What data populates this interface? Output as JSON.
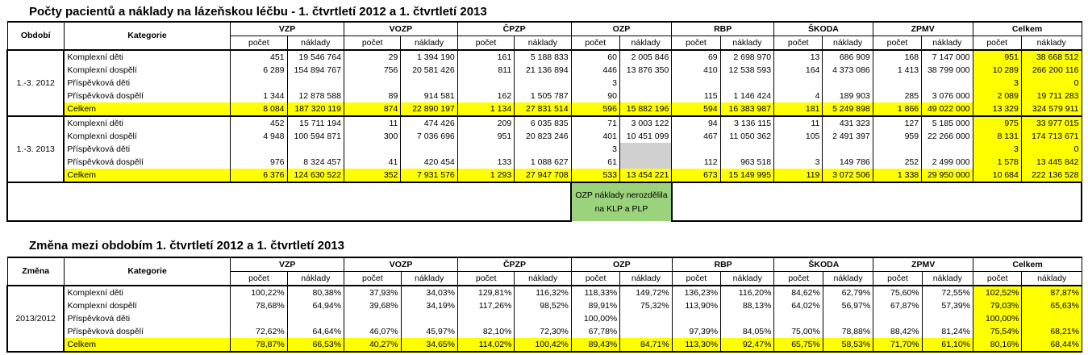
{
  "table1": {
    "title": "Počty pacientů a náklady na lázeňskou léčbu - 1. čtvrtletí 2012 a 1. čtvrtletí 2013",
    "col_period": "Období",
    "col_category": "Kategorie",
    "insurers": [
      "VZP",
      "VOZP",
      "ČPZP",
      "OZP",
      "RBP",
      "ŠKODA",
      "ZPMV",
      "Celkem"
    ],
    "sub_count": "počet",
    "sub_cost": "náklady",
    "groups": [
      {
        "period": "1.-3. 2012",
        "rows": [
          {
            "label": "Komplexní děti",
            "values": [
              "451",
              "19 546 764",
              "29",
              "1 394 190",
              "161",
              "5 188 833",
              "60",
              "2 005 846",
              "69",
              "2 698 970",
              "13",
              "686 909",
              "168",
              "7 147 000",
              "951",
              "38 668 512"
            ]
          },
          {
            "label": "Komplexní dospělí",
            "values": [
              "6 289",
              "154 894 767",
              "756",
              "20 581 426",
              "811",
              "21 136 894",
              "446",
              "13 876 350",
              "410",
              "12 538 593",
              "164",
              "4 373 086",
              "1 413",
              "38 799 000",
              "10 289",
              "266 200 116"
            ]
          },
          {
            "label": "Příspěvková děti",
            "values": [
              "",
              "",
              "",
              "",
              "",
              "",
              "3",
              "",
              "",
              "",
              "",
              "",
              "",
              "",
              "3",
              "0"
            ]
          },
          {
            "label": "Příspěvková dospělí",
            "values": [
              "1 344",
              "12 878 588",
              "89",
              "914 581",
              "162",
              "1 505 787",
              "90",
              "",
              "115",
              "1 146 424",
              "4",
              "189 903",
              "285",
              "3 076 000",
              "2 089",
              "19 711 283"
            ]
          },
          {
            "label": "Celkem",
            "values": [
              "8 084",
              "187 320 119",
              "874",
              "22 890 197",
              "1 134",
              "27 831 514",
              "596",
              "15 882 196",
              "594",
              "16 383 987",
              "181",
              "5 249 898",
              "1 866",
              "49 022 000",
              "13 329",
              "324 579 911"
            ]
          }
        ]
      },
      {
        "period": "1.-3. 2013",
        "rows": [
          {
            "label": "Komplexní děti",
            "values": [
              "452",
              "15 711 194",
              "11",
              "474 426",
              "209",
              "6 035 835",
              "71",
              "3 003 122",
              "94",
              "3 136 115",
              "11",
              "431 323",
              "127",
              "5 185 000",
              "975",
              "33 977 015"
            ]
          },
          {
            "label": "Komplexní dospělí",
            "values": [
              "4 948",
              "100 594 871",
              "300",
              "7 036 696",
              "951",
              "20 823 246",
              "401",
              "10 451 099",
              "467",
              "11 050 362",
              "105",
              "2 491 397",
              "959",
              "22 266 000",
              "8 131",
              "174 713 671"
            ]
          },
          {
            "label": "Příspěvková děti",
            "values": [
              "",
              "",
              "",
              "",
              "",
              "",
              "3",
              "",
              "",
              "",
              "",
              "",
              "",
              "",
              "3",
              "0"
            ]
          },
          {
            "label": "Příspěvková dospělí",
            "values": [
              "976",
              "8 324 457",
              "41",
              "420 454",
              "133",
              "1 088 627",
              "61",
              "",
              "112",
              "963 518",
              "3",
              "149 786",
              "252",
              "2 499 000",
              "1 578",
              "13 445 842"
            ]
          },
          {
            "label": "Celkem",
            "values": [
              "6 376",
              "124 630 522",
              "352",
              "7 931 576",
              "1 293",
              "27 947 708",
              "533",
              "13 454 221",
              "673",
              "15 149 995",
              "119",
              "3 072 506",
              "1 338",
              "29 950 000",
              "10 684",
              "222 136 528"
            ]
          }
        ]
      }
    ],
    "note": "OZP náklady nerozdělila na KLP a PLP"
  },
  "table2": {
    "title": "Změna mezi obdobím 1. čtvrtletí 2012 a 1. čtvrtletí 2013",
    "col_period": "Změna",
    "col_category": "Kategorie",
    "insurers": [
      "VZP",
      "VOZP",
      "ČPZP",
      "OZP",
      "RBP",
      "ŠKODA",
      "ZPMV",
      "Celkem"
    ],
    "sub_count": "počet",
    "sub_cost": "náklady",
    "period": "2013/2012",
    "rows": [
      {
        "label": "Komplexní děti",
        "values": [
          "100,22%",
          "80,38%",
          "37,93%",
          "34,03%",
          "129,81%",
          "116,32%",
          "118,33%",
          "149,72%",
          "136,23%",
          "116,20%",
          "84,62%",
          "62,79%",
          "75,60%",
          "72,55%",
          "102,52%",
          "87,87%"
        ]
      },
      {
        "label": "Komplexní dospělí",
        "values": [
          "78,68%",
          "64,94%",
          "39,68%",
          "34,19%",
          "117,26%",
          "98,52%",
          "89,91%",
          "75,32%",
          "113,90%",
          "88,13%",
          "64,02%",
          "56,97%",
          "67,87%",
          "57,39%",
          "79,03%",
          "65,63%"
        ]
      },
      {
        "label": "Příspěvková děti",
        "values": [
          "",
          "",
          "",
          "",
          "",
          "",
          "100,00%",
          "",
          "",
          "",
          "",
          "",
          "",
          "",
          "100,00%",
          ""
        ]
      },
      {
        "label": "Příspěvková dospělí",
        "values": [
          "72,62%",
          "64,64%",
          "46,07%",
          "45,97%",
          "82,10%",
          "72,30%",
          "67,78%",
          "",
          "97,39%",
          "84,05%",
          "75,00%",
          "78,88%",
          "88,42%",
          "81,24%",
          "75,54%",
          "68,21%"
        ]
      },
      {
        "label": "Celkem",
        "values": [
          "78,87%",
          "66,53%",
          "40,27%",
          "34,65%",
          "114,02%",
          "100,42%",
          "89,43%",
          "84,71%",
          "113,30%",
          "92,47%",
          "65,75%",
          "58,53%",
          "71,70%",
          "61,10%",
          "80,16%",
          "68,44%"
        ]
      }
    ]
  },
  "colors": {
    "total_highlight": "#ffff00",
    "note_green": "#9bd27c",
    "gray_cell": "#d0d0d0"
  }
}
